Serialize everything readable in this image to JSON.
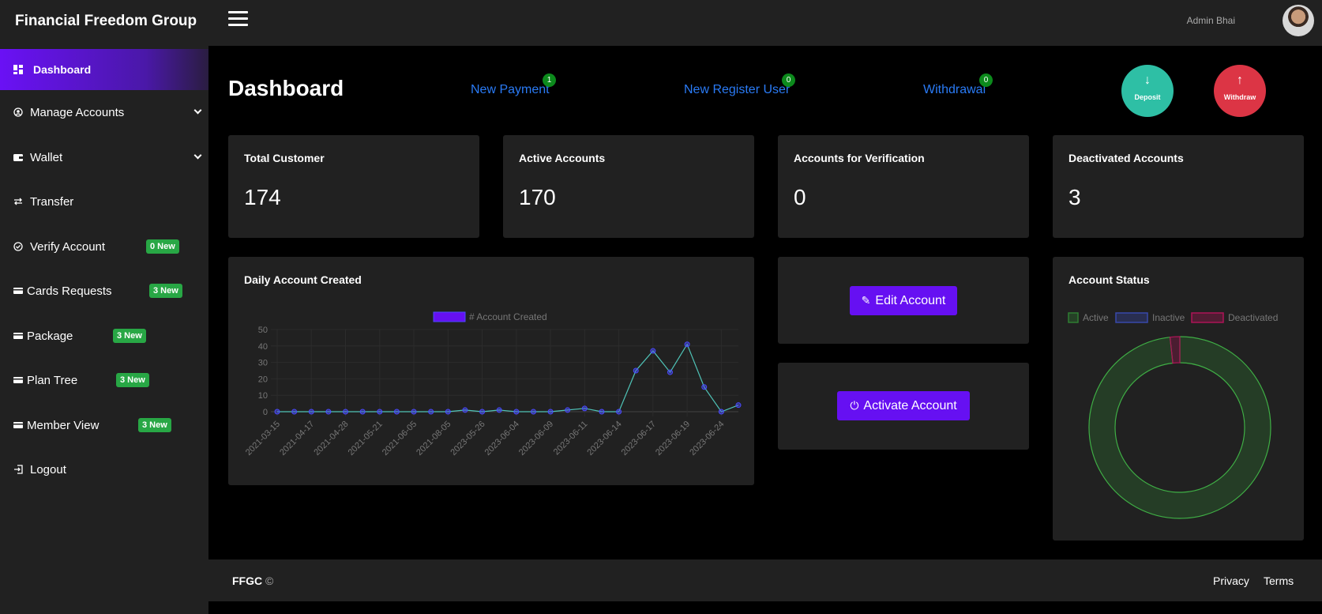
{
  "header": {
    "brand": "Financial Freedom Group",
    "admin_name": "Admin Bhai"
  },
  "sidebar": {
    "items": [
      {
        "label": "Dashboard",
        "icon": "dashboard-icon"
      },
      {
        "label": "Manage Accounts",
        "icon": "user-circle-icon"
      },
      {
        "label": "Wallet",
        "icon": "wallet-icon"
      },
      {
        "label": "Transfer",
        "icon": "transfer-icon"
      },
      {
        "label": "Verify Account",
        "icon": "check-circle-icon",
        "badge": "0 New"
      },
      {
        "label": "Cards Requests",
        "icon": "card-icon",
        "badge": "3 New"
      },
      {
        "label": "Package",
        "icon": "card-icon",
        "badge": "3 New"
      },
      {
        "label": "Plan Tree",
        "icon": "card-icon",
        "badge": "3 New"
      },
      {
        "label": "Member View",
        "icon": "card-icon",
        "badge": "3 New"
      },
      {
        "label": "Logout",
        "icon": "logout-icon"
      }
    ]
  },
  "page": {
    "title": "Dashboard",
    "quick_links": [
      {
        "label": "New Payment",
        "count": "1"
      },
      {
        "label": "New Register User",
        "count": "0"
      },
      {
        "label": "Withdrawal",
        "count": "0"
      }
    ],
    "deposit_label": "Deposit",
    "withdraw_label": "Withdraw"
  },
  "stats": [
    {
      "title": "Total Customer",
      "value": "174"
    },
    {
      "title": "Active Accounts",
      "value": "170"
    },
    {
      "title": "Accounts for Verification",
      "value": "0"
    },
    {
      "title": "Deactivated Accounts",
      "value": "3"
    }
  ],
  "actions": {
    "edit_label": "Edit Account",
    "activate_label": "Activate Account"
  },
  "colors": {
    "accent": "#6610f2",
    "deposit": "#2ebfa5",
    "withdraw": "#dc3545",
    "badge": "#28a745",
    "link": "#2a7bf6"
  },
  "footer": {
    "brand": "FFGC",
    "copyright": "©",
    "links": [
      "Privacy",
      "Terms"
    ]
  },
  "chart_data": [
    {
      "type": "line",
      "title": "Daily Account Created",
      "legend": "# Account Created",
      "legend_position": "top",
      "grid": true,
      "ylim": [
        0,
        50
      ],
      "yticks": [
        0,
        10,
        20,
        30,
        40,
        50
      ],
      "x_tick_labels": [
        "2021-03-15",
        "2021-04-17",
        "2021-04-28",
        "2021-05-21",
        "2021-06-05",
        "2021-08-05",
        "2023-05-26",
        "2023-06-04",
        "2023-06-09",
        "2023-06-11",
        "2023-06-14",
        "2023-06-17",
        "2023-06-19",
        "2023-06-24"
      ],
      "values": [
        0,
        0,
        0,
        0,
        0,
        0,
        0,
        0,
        0,
        0,
        0,
        1,
        0,
        1,
        0,
        0,
        0,
        1,
        2,
        0,
        0,
        25,
        37,
        24,
        41,
        15,
        0,
        4
      ],
      "line_color": "#4fc3b7",
      "point_color": "#4a4aff"
    },
    {
      "type": "pie",
      "variant": "doughnut",
      "title": "Account Status",
      "legend_position": "top",
      "categories": [
        "Active",
        "Inactive",
        "Deactivated"
      ],
      "values": [
        170,
        0,
        3
      ],
      "colors": [
        "#2f7d32",
        "#3949ab",
        "#ad1457"
      ]
    }
  ]
}
